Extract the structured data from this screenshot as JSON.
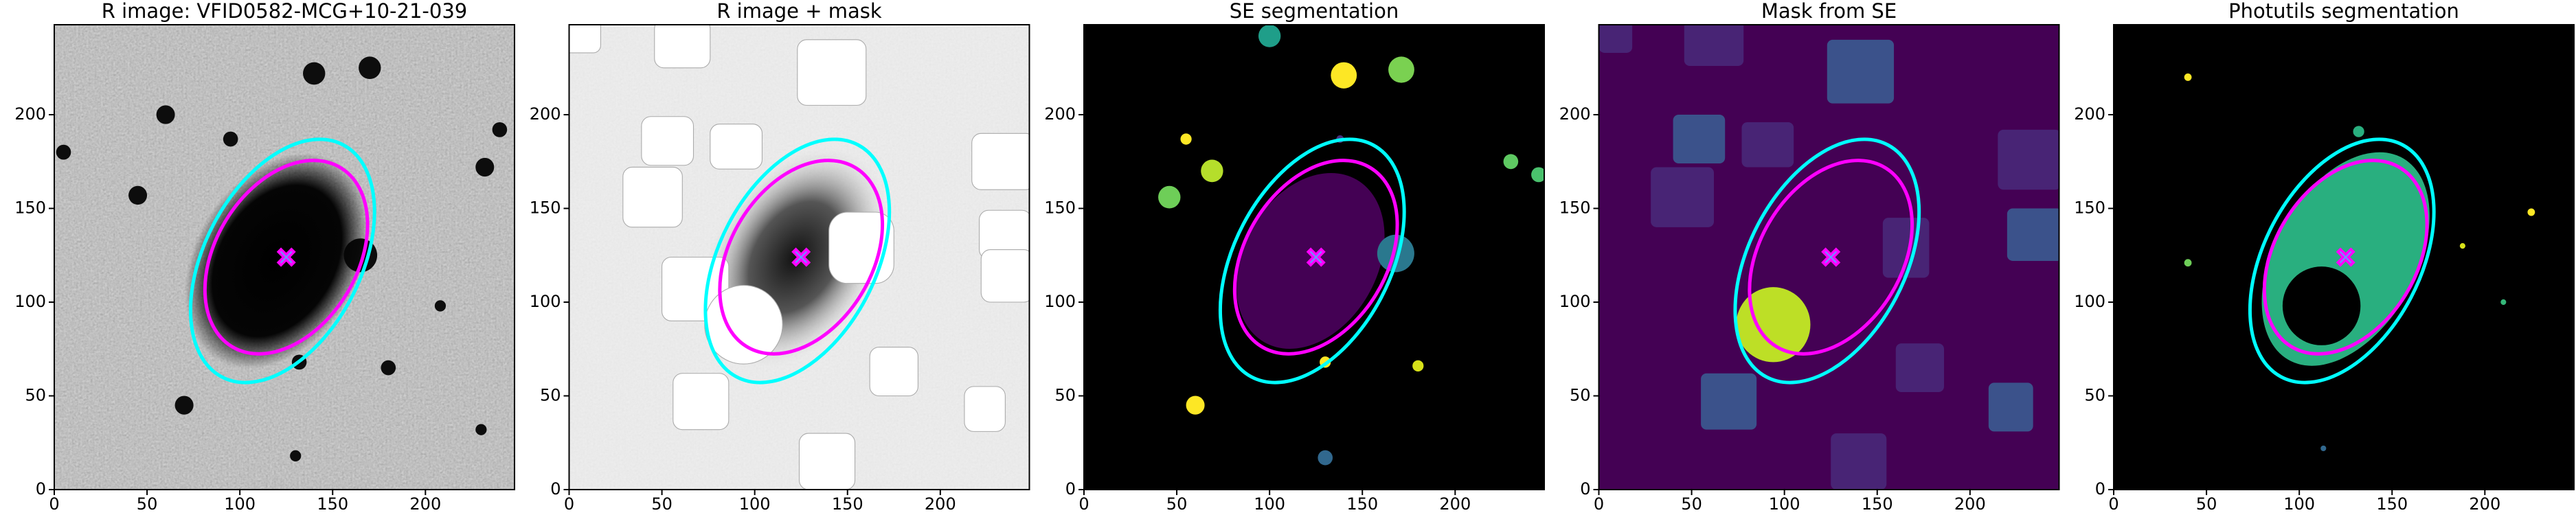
{
  "chart_data": [
    {
      "type": "image",
      "title": "R image: VFID0582-MCG+10-21-039",
      "xlim": [
        0,
        248
      ],
      "ylim": [
        0,
        248
      ],
      "xticks": [
        0,
        50,
        100,
        150,
        200
      ],
      "yticks": [
        0,
        50,
        100,
        150,
        200
      ]
    },
    {
      "type": "image",
      "title": "R image + mask",
      "xlim": [
        0,
        248
      ],
      "ylim": [
        0,
        248
      ],
      "xticks": [
        0,
        50,
        100,
        150,
        200
      ],
      "yticks": [
        0,
        50,
        100,
        150,
        200
      ]
    },
    {
      "type": "image",
      "title": "SE segmentation",
      "xlim": [
        0,
        248
      ],
      "ylim": [
        0,
        248
      ],
      "xticks": [
        0,
        50,
        100,
        150,
        200
      ],
      "yticks": [
        0,
        50,
        100,
        150,
        200
      ]
    },
    {
      "type": "image",
      "title": "Mask from SE",
      "xlim": [
        0,
        248
      ],
      "ylim": [
        0,
        248
      ],
      "xticks": [
        0,
        50,
        100,
        150,
        200
      ],
      "yticks": [
        0,
        50,
        100,
        150,
        200
      ]
    },
    {
      "type": "image",
      "title": "Photutils segmentation",
      "xlim": [
        0,
        248
      ],
      "ylim": [
        0,
        248
      ],
      "xticks": [
        0,
        50,
        100,
        150,
        200
      ],
      "yticks": [
        0,
        50,
        100,
        150,
        200
      ]
    }
  ]
}
